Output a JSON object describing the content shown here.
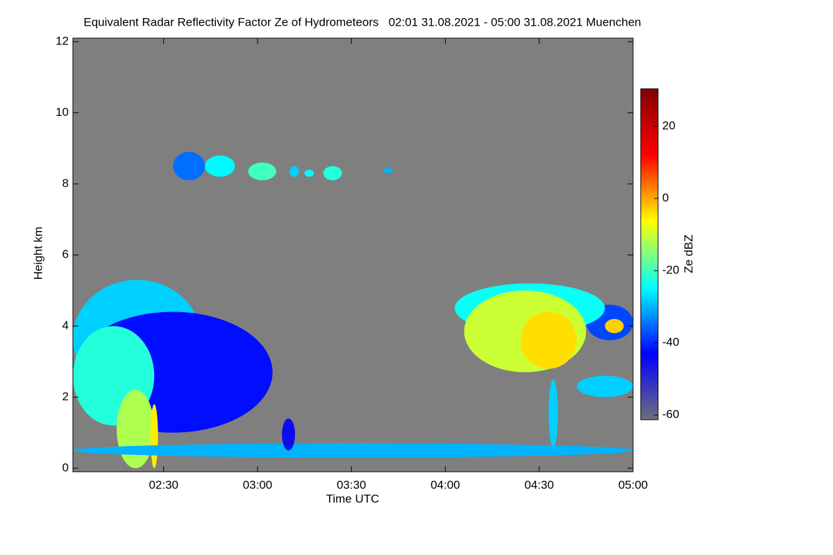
{
  "chart_data": {
    "type": "heatmap",
    "title": "Equivalent Radar Reflectivity Factor Ze of Hydrometeors   02:01 31.08.2021 - 05:00 31.08.2021 Muenchen",
    "x_label": "Time UTC",
    "y_label": "Height km",
    "colorbar_label": "Ze dBZ",
    "xlim": [
      2.0167,
      5.0
    ],
    "xticks": [
      {
        "value": 2.5,
        "label": "02:30"
      },
      {
        "value": 3.0,
        "label": "03:00"
      },
      {
        "value": 3.5,
        "label": "03:30"
      },
      {
        "value": 4.0,
        "label": "04:00"
      },
      {
        "value": 4.5,
        "label": "04:30"
      },
      {
        "value": 5.0,
        "label": "05:00"
      }
    ],
    "ylim": [
      -0.1,
      12.1
    ],
    "yticks": [
      0,
      2,
      4,
      6,
      8,
      10,
      12
    ],
    "zlim": [
      -61.3,
      30.4
    ],
    "zticks": [
      -60,
      -40,
      -20,
      0,
      20
    ],
    "background": "#7f7f7f",
    "colormap": [
      "#6e6e7a",
      "#0000ff",
      "#00ffff",
      "#ffff00",
      "#ff0000",
      "#800000"
    ],
    "echoes": [
      {
        "x": [
          2.0167,
          2.7
        ],
        "y": [
          2.0,
          5.3
        ],
        "z": -28
      },
      {
        "x": [
          2.0167,
          3.08
        ],
        "y": [
          1.0,
          4.4
        ],
        "z": -42
      },
      {
        "x": [
          2.0167,
          2.45
        ],
        "y": [
          1.2,
          4.0
        ],
        "z": -22
      },
      {
        "x": [
          2.25,
          2.45
        ],
        "y": [
          0.0,
          2.2
        ],
        "z": -12
      },
      {
        "x": [
          2.43,
          2.47
        ],
        "y": [
          0.0,
          1.8
        ],
        "z": -5
      },
      {
        "x": [
          2.0167,
          5.0
        ],
        "y": [
          0.3,
          0.7
        ],
        "z": -30
      },
      {
        "x": [
          3.13,
          3.2
        ],
        "y": [
          0.5,
          1.4
        ],
        "z": -45
      },
      {
        "x": [
          2.55,
          2.72
        ],
        "y": [
          8.1,
          8.9
        ],
        "z": -35
      },
      {
        "x": [
          2.72,
          2.88
        ],
        "y": [
          8.2,
          8.8
        ],
        "z": -25
      },
      {
        "x": [
          2.95,
          3.1
        ],
        "y": [
          8.1,
          8.6
        ],
        "z": -20
      },
      {
        "x": [
          3.17,
          3.22
        ],
        "y": [
          8.2,
          8.5
        ],
        "z": -28
      },
      {
        "x": [
          3.25,
          3.3
        ],
        "y": [
          8.2,
          8.4
        ],
        "z": -25
      },
      {
        "x": [
          3.35,
          3.45
        ],
        "y": [
          8.1,
          8.5
        ],
        "z": -22
      },
      {
        "x": [
          3.67,
          3.72
        ],
        "y": [
          8.3,
          8.45
        ],
        "z": -30
      },
      {
        "x": [
          4.75,
          5.0
        ],
        "y": [
          3.6,
          4.6
        ],
        "z": -38
      },
      {
        "x": [
          4.05,
          4.85
        ],
        "y": [
          3.8,
          5.2
        ],
        "z": -24
      },
      {
        "x": [
          4.1,
          4.75
        ],
        "y": [
          2.7,
          5.0
        ],
        "z": -10
      },
      {
        "x": [
          4.4,
          4.7
        ],
        "y": [
          2.8,
          4.4
        ],
        "z": -4
      },
      {
        "x": [
          4.85,
          4.95
        ],
        "y": [
          3.8,
          4.2
        ],
        "z": -3
      },
      {
        "x": [
          4.55,
          4.6
        ],
        "y": [
          0.6,
          2.5
        ],
        "z": -28
      },
      {
        "x": [
          4.7,
          5.0
        ],
        "y": [
          2.0,
          2.6
        ],
        "z": -28
      }
    ]
  }
}
